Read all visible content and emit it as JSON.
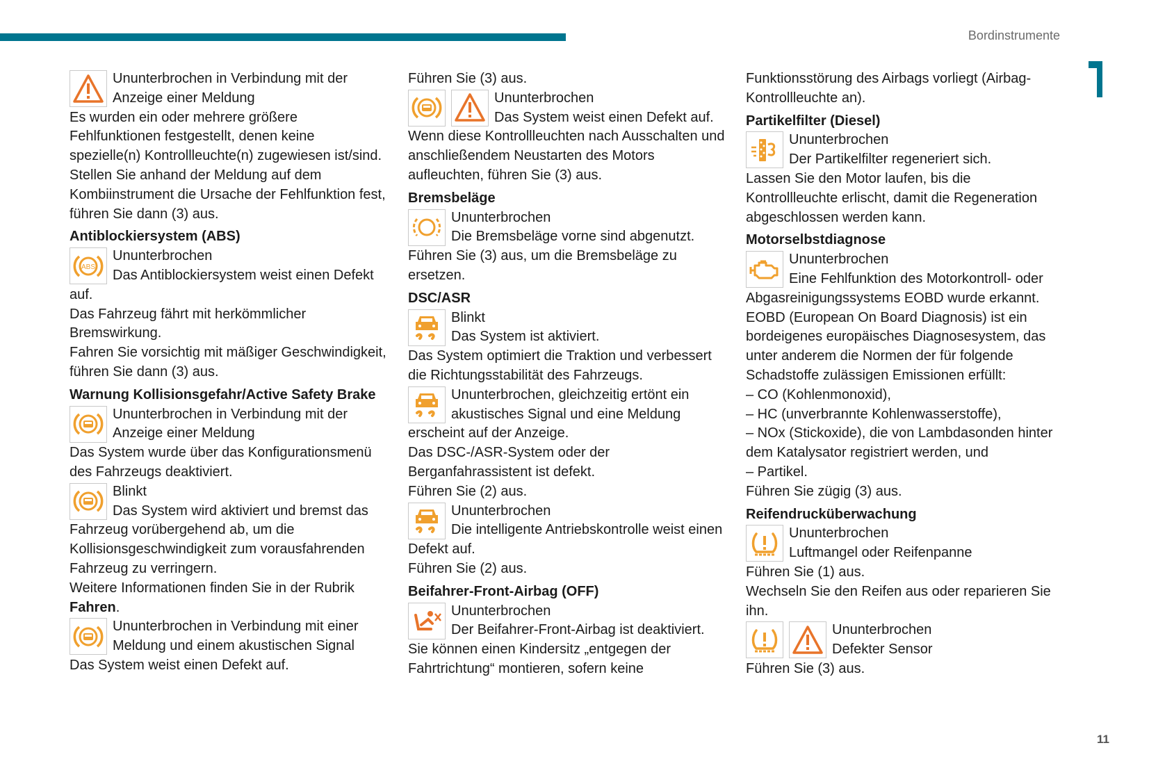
{
  "header": {
    "section_title": "Bordinstrumente",
    "chapter_number": "1",
    "accent_color": "#00758f"
  },
  "page_number": "11",
  "colors": {
    "amber": "#f0a02e",
    "orange": "#e8742a"
  },
  "columns": [
    [
      {
        "type": "icon",
        "icons": [
          "warning-triangle"
        ],
        "lines": [
          "Ununterbrochen in Verbindung mit der Anzeige einer Meldung"
        ]
      },
      {
        "type": "p",
        "text": "Es wurden ein oder mehrere größere Fehlfunktionen festgestellt, denen keine spezielle(n) Kontrollleuchte(n) zugewiesen ist/sind."
      },
      {
        "type": "p",
        "text": "Stellen Sie anhand der Meldung auf dem Kombiinstrument die Ursache der Fehlfunktion fest, führen Sie dann (3) aus."
      },
      {
        "type": "h",
        "text": "Antiblockiersystem (ABS)"
      },
      {
        "type": "icon",
        "icons": [
          "abs"
        ],
        "lines": [
          "Ununterbrochen",
          "Das Antiblockiersystem weist einen Defekt auf."
        ]
      },
      {
        "type": "p",
        "text": "Das Fahrzeug fährt mit herkömmlicher Bremswirkung."
      },
      {
        "type": "p",
        "text": "Fahren Sie vorsichtig mit mäßiger Geschwindigkeit, führen Sie dann (3) aus."
      },
      {
        "type": "h",
        "text": "Warnung Kollisionsgefahr/Active Safety Brake"
      },
      {
        "type": "icon",
        "icons": [
          "collision"
        ],
        "lines": [
          "Ununterbrochen in Verbindung mit der Anzeige einer Meldung"
        ]
      },
      {
        "type": "p",
        "text": "Das System wurde über das Konfigurationsmenü des Fahrzeugs deaktiviert."
      },
      {
        "type": "icon",
        "icons": [
          "collision"
        ],
        "lines": [
          "Blinkt",
          "Das System wird aktiviert und bremst das Fahrzeug vorübergehend ab, um die Kollisionsgeschwindigkeit zum vorausfahrenden Fahrzeug zu verringern."
        ]
      },
      {
        "type": "p",
        "text": "Weitere Informationen finden Sie in der Rubrik ",
        "bold": "Fahren",
        "after": "."
      },
      {
        "type": "icon",
        "icons": [
          "collision"
        ],
        "lines": [
          "Ununterbrochen in Verbindung mit einer Meldung und einem akustischen Signal"
        ]
      },
      {
        "type": "p",
        "text": "Das System weist einen Defekt auf."
      }
    ],
    [
      {
        "type": "p",
        "text": "Führen Sie (3) aus."
      },
      {
        "type": "icon",
        "icons": [
          "collision",
          "warning-triangle"
        ],
        "lines": [
          "Ununterbrochen",
          "Das System weist einen Defekt auf."
        ]
      },
      {
        "type": "p",
        "text": "Wenn diese Kontrollleuchten nach Ausschalten und anschließendem Neustarten des Motors aufleuchten, führen Sie (3) aus."
      },
      {
        "type": "h",
        "text": "Bremsbeläge"
      },
      {
        "type": "icon",
        "icons": [
          "brake-pads"
        ],
        "lines": [
          "Ununterbrochen",
          "Die Bremsbeläge vorne sind abgenutzt."
        ]
      },
      {
        "type": "p",
        "text": "Führen Sie (3) aus, um die Bremsbeläge zu ersetzen."
      },
      {
        "type": "h",
        "text": "DSC/ASR"
      },
      {
        "type": "icon",
        "icons": [
          "dsc"
        ],
        "lines": [
          "Blinkt",
          "Das System ist aktiviert."
        ]
      },
      {
        "type": "p",
        "text": "Das System optimiert die Traktion und verbessert die Richtungsstabilität des Fahrzeugs."
      },
      {
        "type": "icon",
        "icons": [
          "dsc"
        ],
        "lines": [
          "Ununterbrochen, gleichzeitig ertönt ein akustisches Signal und eine Meldung erscheint auf der Anzeige."
        ]
      },
      {
        "type": "p",
        "text": "Das DSC-/ASR-System oder der Berganfahrassistent ist defekt."
      },
      {
        "type": "p",
        "text": "Führen Sie (2) aus."
      },
      {
        "type": "icon",
        "icons": [
          "dsc"
        ],
        "lines": [
          "Ununterbrochen",
          "Die intelligente Antriebskontrolle weist einen Defekt auf."
        ]
      },
      {
        "type": "p",
        "text": "Führen Sie (2) aus."
      },
      {
        "type": "h",
        "text": "Beifahrer-Front-Airbag (OFF)"
      },
      {
        "type": "icon",
        "icons": [
          "airbag-off"
        ],
        "lines": [
          "Ununterbrochen",
          "Der Beifahrer-Front-Airbag ist deaktiviert."
        ]
      },
      {
        "type": "p",
        "text": "Sie können einen Kindersitz „entgegen der Fahrtrichtung“ montieren, sofern keine"
      }
    ],
    [
      {
        "type": "p",
        "text": "Funktionsstörung des Airbags vorliegt (Airbag-Kontrollleuchte an)."
      },
      {
        "type": "h",
        "text": "Partikelfilter (Diesel)"
      },
      {
        "type": "icon",
        "icons": [
          "particle-filter"
        ],
        "lines": [
          "Ununterbrochen",
          "Der Partikelfilter regeneriert sich."
        ]
      },
      {
        "type": "p",
        "text": "Lassen Sie den Motor laufen, bis die Kontrollleuchte erlischt, damit die Regeneration abgeschlossen werden kann."
      },
      {
        "type": "h",
        "text": "Motorselbstdiagnose"
      },
      {
        "type": "icon",
        "icons": [
          "engine"
        ],
        "lines": [
          "Ununterbrochen",
          "Eine Fehlfunktion des Motorkontroll- oder Abgasreinigungssystems EOBD wurde erkannt."
        ]
      },
      {
        "type": "p",
        "text": "EOBD (European On Board Diagnosis) ist ein bordeigenes europäisches Diagnosesystem, das unter anderem die Normen der für folgende Schadstoffe zulässigen Emissionen erfüllt:"
      },
      {
        "type": "p",
        "text": "–  CO (Kohlenmonoxid),"
      },
      {
        "type": "p",
        "text": "–  HC (unverbrannte Kohlenwasserstoffe),"
      },
      {
        "type": "p",
        "text": "–  NOx (Stickoxide), die von Lambdasonden hinter dem Katalysator registriert werden, und"
      },
      {
        "type": "p",
        "text": "–  Partikel."
      },
      {
        "type": "p",
        "text": "Führen Sie zügig (3) aus."
      },
      {
        "type": "h",
        "text": "Reifendrucküberwachung"
      },
      {
        "type": "icon",
        "icons": [
          "tire-pressure"
        ],
        "lines": [
          "Ununterbrochen",
          "Luftmangel oder Reifenpanne"
        ]
      },
      {
        "type": "p",
        "text": "Führen Sie (1) aus."
      },
      {
        "type": "p",
        "text": "Wechseln Sie den Reifen aus oder reparieren Sie ihn."
      },
      {
        "type": "icon",
        "icons": [
          "tire-pressure",
          "warning-triangle"
        ],
        "lines": [
          "Ununterbrochen",
          "Defekter Sensor"
        ]
      },
      {
        "type": "p",
        "text": "Führen Sie (3) aus."
      }
    ]
  ]
}
